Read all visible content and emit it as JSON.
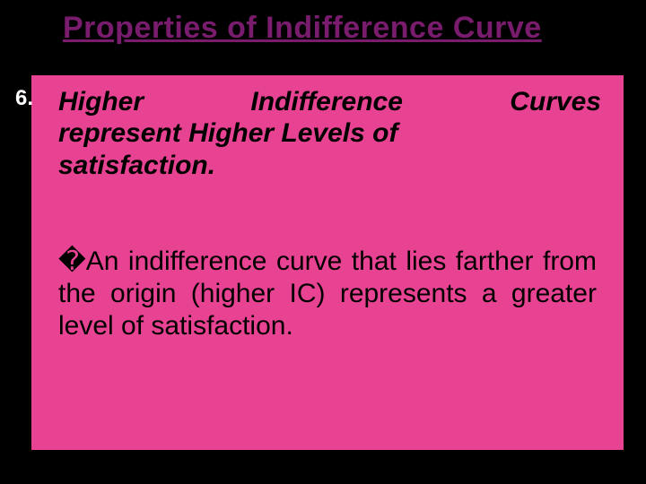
{
  "slide": {
    "background_color": "#000000",
    "box_color": "#e84393",
    "title": "Properties of Indifference Curve",
    "title_color": "#7a1c6e",
    "title_fontsize": 34,
    "list_number": "6.",
    "list_number_color": "#ffffff",
    "heading": {
      "line1_left": "Higher",
      "line1_mid": "Indifference",
      "line1_right": "Curves",
      "line2": "represent Higher Levels of",
      "line3": "satisfaction.",
      "fontsize": 30,
      "color": "#000000"
    },
    "body": {
      "bullet_glyph": "�",
      "text": "An indifference curve that lies farther from the origin (higher IC) represents a greater level of satisfaction.",
      "fontsize": 30,
      "color": "#000000"
    }
  }
}
